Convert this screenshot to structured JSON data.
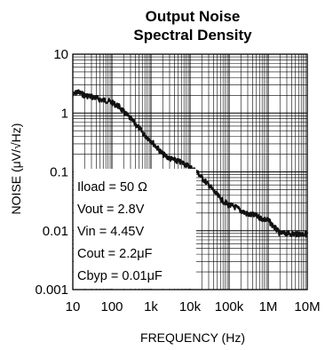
{
  "chart_data": {
    "type": "line",
    "title_lines": [
      "Output Noise",
      "Spectral Density"
    ],
    "xlabel": "FREQUENCY (Hz)",
    "ylabel": "NOISE (μV/√Hz)",
    "x_scale": "log",
    "y_scale": "log",
    "xlim": [
      10,
      10000000
    ],
    "ylim": [
      0.001,
      10
    ],
    "grid": true,
    "x_ticks": [
      {
        "value": 10,
        "label": "10"
      },
      {
        "value": 100,
        "label": "100"
      },
      {
        "value": 1000,
        "label": "1k"
      },
      {
        "value": 10000,
        "label": "10k"
      },
      {
        "value": 100000,
        "label": "100k"
      },
      {
        "value": 1000000,
        "label": "1M"
      },
      {
        "value": 10000000,
        "label": "10M"
      }
    ],
    "y_ticks": [
      {
        "value": 0.001,
        "label": "0.001"
      },
      {
        "value": 0.01,
        "label": "0.01"
      },
      {
        "value": 0.1,
        "label": "0.1"
      },
      {
        "value": 1,
        "label": "1"
      },
      {
        "value": 10,
        "label": "10"
      }
    ],
    "annotations": [
      "Iload = 50 Ω",
      "Vout = 2.8V",
      "Vin = 4.45V",
      "Cout = 2.2μF",
      "Cbyp = 0.01μF"
    ],
    "series": [
      {
        "color": "#111111",
        "x": [
          10,
          13,
          20,
          30,
          50,
          80,
          100,
          150,
          200,
          300,
          500,
          700,
          1000,
          1500,
          2000,
          3000,
          5000,
          7000,
          10000,
          15000,
          20000,
          30000,
          50000,
          70000,
          100000,
          150000,
          200000,
          300000,
          500000,
          700000,
          1000000,
          2000000,
          3000000,
          5000000,
          10000000
        ],
        "y": [
          2.0,
          2.3,
          2.0,
          1.9,
          1.7,
          1.6,
          1.5,
          1.3,
          1.05,
          0.8,
          0.55,
          0.42,
          0.34,
          0.25,
          0.2,
          0.17,
          0.15,
          0.14,
          0.12,
          0.1,
          0.08,
          0.06,
          0.04,
          0.032,
          0.027,
          0.025,
          0.022,
          0.019,
          0.018,
          0.016,
          0.015,
          0.009,
          0.009,
          0.0088,
          0.0088
        ]
      }
    ]
  }
}
